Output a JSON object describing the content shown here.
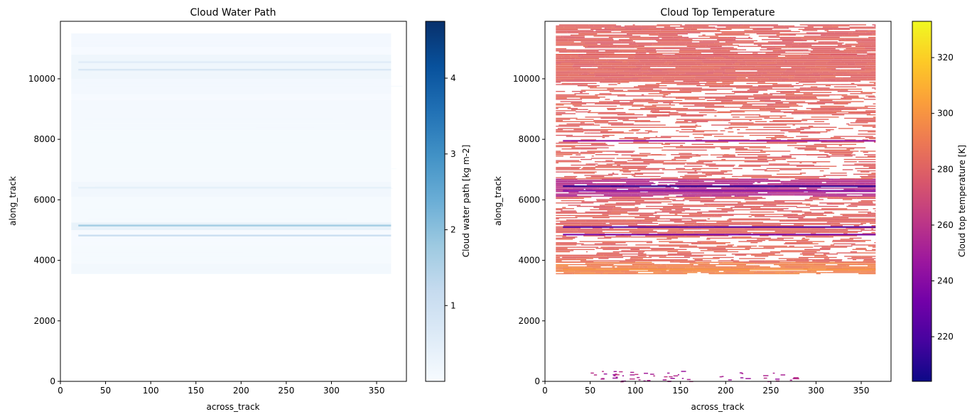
{
  "chart_data": [
    {
      "type": "heatmap",
      "title": "Cloud Water Path",
      "xlabel": "across_track",
      "ylabel": "along_track",
      "xlim": [
        0,
        383
      ],
      "ylim": [
        0,
        11900
      ],
      "xticks": [
        0,
        50,
        100,
        150,
        200,
        250,
        300,
        350
      ],
      "yticks": [
        0,
        2000,
        4000,
        6000,
        8000,
        10000
      ],
      "grid": false,
      "colormap": "Blues",
      "colorbar": {
        "label": "Cloud water path [kg m-2]",
        "range": [
          0,
          4.75
        ],
        "ticks": [
          1,
          2,
          3,
          4
        ],
        "colors": [
          "#f7fbff",
          "#deebf7",
          "#c6dbef",
          "#9ecae1",
          "#6baed6",
          "#4292c6",
          "#2171b5",
          "#08519c",
          "#08306b"
        ]
      },
      "data_extent": {
        "x": [
          12,
          366
        ],
        "y": [
          3550,
          11500
        ]
      },
      "bands": [
        {
          "y": [
            3550,
            3900
          ],
          "value": 0.12
        },
        {
          "y": [
            3900,
            4500
          ],
          "value": 0.04
        },
        {
          "y": [
            4500,
            5000
          ],
          "value": 0.03
        },
        {
          "y": [
            5000,
            5250
          ],
          "value": 0.35
        },
        {
          "y": [
            5250,
            6100
          ],
          "value": 0.05
        },
        {
          "y": [
            6100,
            6600
          ],
          "value": 0.15
        },
        {
          "y": [
            6600,
            8300
          ],
          "value": 0.04
        },
        {
          "y": [
            8300,
            9300
          ],
          "value": 0.06
        },
        {
          "y": [
            9300,
            9500
          ],
          "value": 0.02
        },
        {
          "y": [
            9500,
            10000
          ],
          "value": 0.1
        },
        {
          "y": [
            10000,
            10800
          ],
          "value": 0.2
        },
        {
          "y": [
            10800,
            11050
          ],
          "value": 0.03
        },
        {
          "y": [
            11050,
            11500
          ],
          "value": 0.1
        }
      ],
      "streaks": [
        {
          "y": 5150,
          "value": 1.8
        },
        {
          "y": 4820,
          "value": 1.2
        },
        {
          "y": 10300,
          "value": 0.8
        },
        {
          "y": 10550,
          "value": 0.6
        },
        {
          "y": 6400,
          "value": 0.5
        }
      ]
    },
    {
      "type": "heatmap",
      "title": "Cloud Top Temperature",
      "xlabel": "across_track",
      "ylabel": "along_track",
      "xlim": [
        0,
        383
      ],
      "ylim": [
        0,
        11900
      ],
      "xticks": [
        0,
        50,
        100,
        150,
        200,
        250,
        300,
        350
      ],
      "yticks": [
        0,
        2000,
        4000,
        6000,
        8000,
        10000
      ],
      "grid": false,
      "colormap": "plasma",
      "colorbar": {
        "label": "Cloud top temperature [K]",
        "range": [
          204,
          333
        ],
        "ticks": [
          220,
          240,
          260,
          280,
          300,
          320
        ],
        "colors": [
          "#0d0887",
          "#46039f",
          "#7201a8",
          "#9c179e",
          "#bd3786",
          "#d8576b",
          "#ed7953",
          "#fb9f3a",
          "#fdca26",
          "#f0f921"
        ]
      },
      "data_extent": {
        "x": [
          12,
          366
        ],
        "y": [
          3550,
          11800
        ]
      },
      "bands": [
        {
          "y": [
            3550,
            3950
          ],
          "value": 293,
          "coverage": 0.85
        },
        {
          "y": [
            3950,
            4900
          ],
          "value": 283,
          "coverage": 0.55
        },
        {
          "y": [
            4900,
            5350
          ],
          "value": 281,
          "coverage": 0.8
        },
        {
          "y": [
            5350,
            6100
          ],
          "value": 281,
          "coverage": 0.5
        },
        {
          "y": [
            6100,
            6700
          ],
          "value": 258,
          "coverage": 0.85
        },
        {
          "y": [
            6700,
            7500
          ],
          "value": 281,
          "coverage": 0.45
        },
        {
          "y": [
            7500,
            8900
          ],
          "value": 282,
          "coverage": 0.4
        },
        {
          "y": [
            8900,
            9900
          ],
          "value": 282,
          "coverage": 0.55
        },
        {
          "y": [
            9900,
            10800
          ],
          "value": 281,
          "coverage": 0.98
        },
        {
          "y": [
            10800,
            11800
          ],
          "value": 281,
          "coverage": 0.8
        }
      ],
      "streaks": [
        {
          "y": 6450,
          "value": 212
        },
        {
          "y": 6300,
          "value": 240
        },
        {
          "y": 5100,
          "value": 222
        },
        {
          "y": 4850,
          "value": 235
        },
        {
          "y": 3700,
          "value": 300
        },
        {
          "y": 7950,
          "value": 245
        }
      ],
      "scatter_low": {
        "y": [
          0,
          350
        ],
        "value": 255
      }
    }
  ]
}
